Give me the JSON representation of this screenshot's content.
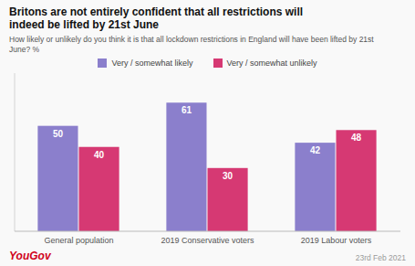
{
  "chart_data": {
    "type": "bar",
    "title": "Britons are not entirely confident that all restrictions will\nindeed be lifted by 21st June",
    "subtitle": "How likely or unlikely do you think it is that all lockdown restrictions in England will have been lifted by 21st\nJune? %",
    "categories": [
      "General population",
      "2019 Conservative voters",
      "2019 Labour voters"
    ],
    "series": [
      {
        "name": "Very / somewhat likely",
        "color": "#8b7fcc",
        "values": [
          50,
          61,
          42
        ]
      },
      {
        "name": "Very / somewhat unlikely",
        "color": "#d63973",
        "values": [
          40,
          30,
          48
        ]
      }
    ],
    "ylim": [
      0,
      75
    ],
    "grid": false,
    "data_labels": true,
    "tick_labels": "x",
    "legend": "top",
    "annotations": [
      "YouGov",
      "23rd Feb 2021"
    ]
  }
}
